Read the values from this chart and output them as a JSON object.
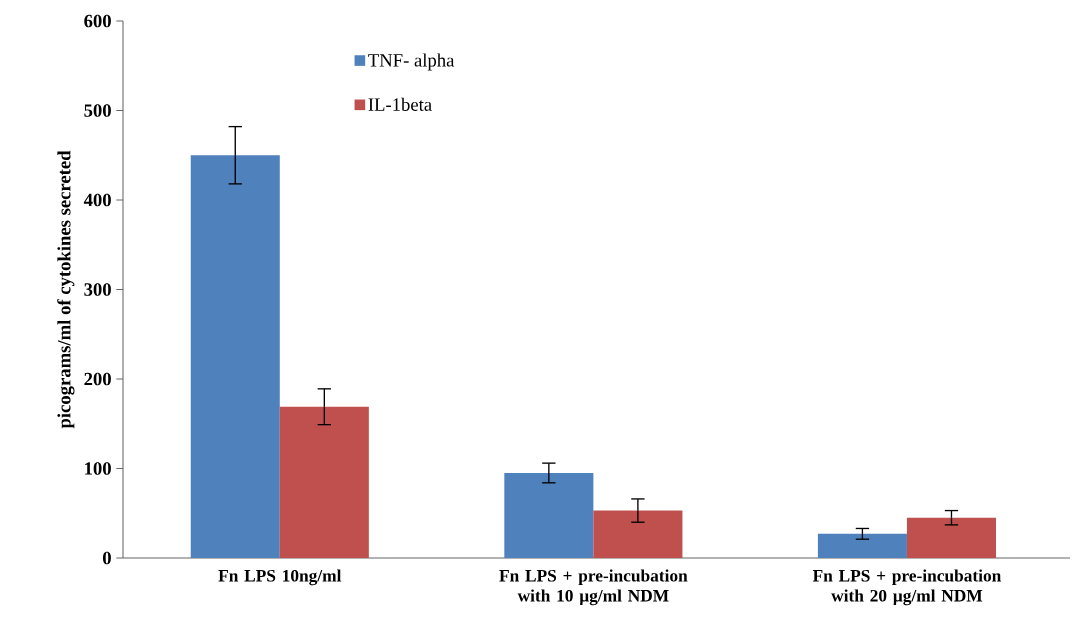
{
  "chart_data": {
    "type": "bar",
    "ylabel": "picograms/ml of cytokines secreted",
    "categories": [
      "Fn LPS 10ng/ml",
      "Fn LPS + pre-incubation with 10 µg/ml NDM",
      "Fn LPS + pre-incubation with 20 µg/ml NDM"
    ],
    "series": [
      {
        "name": "TNF- alpha",
        "color": "#4f81bd",
        "values": [
          450,
          95,
          27
        ],
        "errors": [
          32,
          11,
          6
        ]
      },
      {
        "name": "IL-1beta",
        "color": "#c0504d",
        "values": [
          169,
          53,
          45
        ],
        "errors": [
          20,
          13,
          8
        ]
      }
    ],
    "ylim": [
      0,
      600
    ],
    "yticks": [
      0,
      100,
      200,
      300,
      400,
      500,
      600
    ],
    "legend": "top left",
    "grid": false
  }
}
